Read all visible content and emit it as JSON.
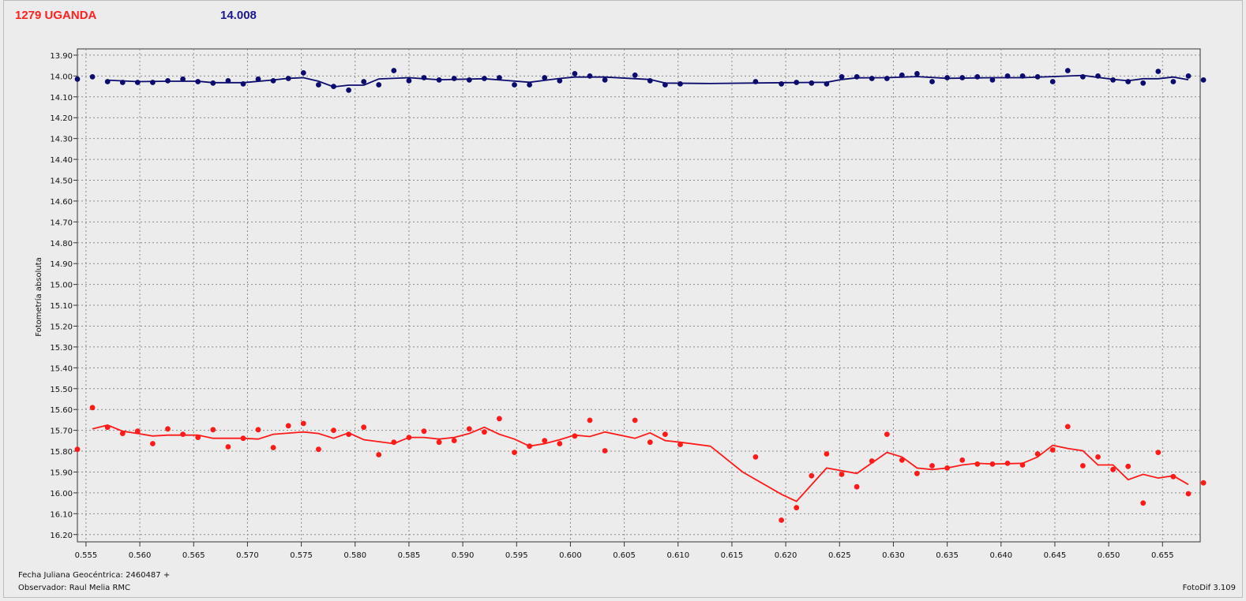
{
  "header": {
    "object_name": "1279 UGANDA",
    "mean_magnitude": "14.008"
  },
  "footer": {
    "julian_date": "Fecha Juliana Geocéntrica: 2460487 +",
    "observer": "Observador: Raul Melia RMC",
    "software": "FotoDif 3.109"
  },
  "colors": {
    "comparison_star": "#0c0c6e",
    "asteroid": "#ff1a1a",
    "background": "#ececec",
    "grid": "#8a8a8a"
  },
  "chart_data": {
    "type": "scatter",
    "xlabel": "",
    "ylabel": "Fotometría absoluta",
    "xlim": [
      0.5542,
      0.6585
    ],
    "ylim": [
      13.87,
      16.235
    ],
    "y_inverted": true,
    "grid": true,
    "x_ticks": [
      0.555,
      0.56,
      0.565,
      0.57,
      0.575,
      0.58,
      0.585,
      0.59,
      0.595,
      0.6,
      0.605,
      0.61,
      0.615,
      0.62,
      0.625,
      0.63,
      0.635,
      0.64,
      0.645,
      0.65,
      0.655
    ],
    "x_tick_labels": [
      "0.555",
      "0.560",
      "0.565",
      "0.570",
      "0.575",
      "0.580",
      "0.585",
      "0.590",
      "0.595",
      "0.600",
      "0.605",
      "0.610",
      "0.615",
      "0.620",
      "0.625",
      "0.630",
      "0.635",
      "0.640",
      "0.645",
      "0.650",
      "0.655"
    ],
    "y_ticks": [
      13.9,
      14.0,
      14.1,
      14.2,
      14.3,
      14.4,
      14.5,
      14.6,
      14.7,
      14.8,
      14.9,
      15.0,
      15.1,
      15.2,
      15.3,
      15.4,
      15.5,
      15.6,
      15.7,
      15.8,
      15.9,
      16.0,
      16.1,
      16.2
    ],
    "y_tick_labels": [
      "13.90",
      "14.00",
      "14.10",
      "14.20",
      "14.30",
      "14.40",
      "14.50",
      "14.60",
      "14.70",
      "14.80",
      "14.90",
      "15.00",
      "15.10",
      "15.20",
      "15.30",
      "15.40",
      "15.50",
      "15.60",
      "15.70",
      "15.80",
      "15.90",
      "16.00",
      "16.10",
      "16.20"
    ],
    "series": [
      {
        "key": "comparison_star",
        "points": [
          [
            0.5542,
            14.015
          ],
          [
            0.5556,
            14.004
          ],
          [
            0.557,
            14.027
          ],
          [
            0.5584,
            14.031
          ],
          [
            0.5598,
            14.031
          ],
          [
            0.5612,
            14.031
          ],
          [
            0.5626,
            14.023
          ],
          [
            0.564,
            14.015
          ],
          [
            0.5654,
            14.027
          ],
          [
            0.5668,
            14.034
          ],
          [
            0.5682,
            14.023
          ],
          [
            0.5696,
            14.038
          ],
          [
            0.571,
            14.015
          ],
          [
            0.5724,
            14.023
          ],
          [
            0.5738,
            14.012
          ],
          [
            0.5752,
            13.985
          ],
          [
            0.5766,
            14.042
          ],
          [
            0.578,
            14.05
          ],
          [
            0.5794,
            14.068
          ],
          [
            0.5808,
            14.027
          ],
          [
            0.5822,
            14.042
          ],
          [
            0.5836,
            13.974
          ],
          [
            0.585,
            14.023
          ],
          [
            0.5864,
            14.008
          ],
          [
            0.5878,
            14.019
          ],
          [
            0.5892,
            14.012
          ],
          [
            0.5906,
            14.019
          ],
          [
            0.592,
            14.012
          ],
          [
            0.5934,
            14.008
          ],
          [
            0.5948,
            14.042
          ],
          [
            0.5962,
            14.042
          ],
          [
            0.5976,
            14.008
          ],
          [
            0.599,
            14.023
          ],
          [
            0.6004,
            13.989
          ],
          [
            0.6018,
            14.0
          ],
          [
            0.6032,
            14.019
          ],
          [
            0.606,
            13.996
          ],
          [
            0.6074,
            14.023
          ],
          [
            0.6088,
            14.042
          ],
          [
            0.6102,
            14.038
          ],
          [
            0.6172,
            14.027
          ],
          [
            0.6196,
            14.038
          ],
          [
            0.621,
            14.031
          ],
          [
            0.6224,
            14.034
          ],
          [
            0.6238,
            14.038
          ],
          [
            0.6252,
            14.004
          ],
          [
            0.6266,
            14.004
          ],
          [
            0.628,
            14.012
          ],
          [
            0.6294,
            14.012
          ],
          [
            0.6308,
            13.996
          ],
          [
            0.6322,
            13.989
          ],
          [
            0.6336,
            14.027
          ],
          [
            0.635,
            14.008
          ],
          [
            0.6364,
            14.008
          ],
          [
            0.6378,
            14.004
          ],
          [
            0.6392,
            14.019
          ],
          [
            0.6406,
            14.0
          ],
          [
            0.642,
            14.0
          ],
          [
            0.6434,
            14.004
          ],
          [
            0.6448,
            14.027
          ],
          [
            0.6462,
            13.974
          ],
          [
            0.6476,
            14.004
          ],
          [
            0.649,
            14.0
          ],
          [
            0.6504,
            14.019
          ],
          [
            0.6518,
            14.027
          ],
          [
            0.6532,
            14.034
          ],
          [
            0.6546,
            13.978
          ],
          [
            0.656,
            14.027
          ],
          [
            0.6574,
            14.0
          ],
          [
            0.6588,
            14.019
          ]
        ],
        "smoothed": [
          [
            0.557,
            14.02
          ],
          [
            0.5598,
            14.027
          ],
          [
            0.5626,
            14.025
          ],
          [
            0.5654,
            14.025
          ],
          [
            0.5668,
            14.032
          ],
          [
            0.5696,
            14.032
          ],
          [
            0.5724,
            14.019
          ],
          [
            0.5738,
            14.011
          ],
          [
            0.5752,
            14.008
          ],
          [
            0.5766,
            14.025
          ],
          [
            0.578,
            14.052
          ],
          [
            0.5794,
            14.044
          ],
          [
            0.5808,
            14.044
          ],
          [
            0.5822,
            14.014
          ],
          [
            0.585,
            14.008
          ],
          [
            0.5864,
            14.013
          ],
          [
            0.5878,
            14.018
          ],
          [
            0.592,
            14.013
          ],
          [
            0.5962,
            14.03
          ],
          [
            0.5976,
            14.021
          ],
          [
            0.599,
            14.012
          ],
          [
            0.6004,
            14.005
          ],
          [
            0.6032,
            14.005
          ],
          [
            0.6074,
            14.017
          ],
          [
            0.6088,
            14.034
          ],
          [
            0.613,
            14.036
          ],
          [
            0.62,
            14.032
          ],
          [
            0.6238,
            14.03
          ],
          [
            0.6252,
            14.017
          ],
          [
            0.6266,
            14.009
          ],
          [
            0.6294,
            14.008
          ],
          [
            0.6322,
            14.003
          ],
          [
            0.635,
            14.011
          ],
          [
            0.6392,
            14.008
          ],
          [
            0.642,
            14.008
          ],
          [
            0.6448,
            14.003
          ],
          [
            0.6476,
            13.997
          ],
          [
            0.6504,
            14.016
          ],
          [
            0.6518,
            14.023
          ],
          [
            0.6532,
            14.013
          ],
          [
            0.6546,
            14.013
          ],
          [
            0.656,
            14.005
          ],
          [
            0.6574,
            14.018
          ]
        ]
      },
      {
        "key": "asteroid",
        "points": [
          [
            0.5542,
            15.791
          ],
          [
            0.5556,
            15.591
          ],
          [
            0.557,
            15.685
          ],
          [
            0.5584,
            15.715
          ],
          [
            0.5598,
            15.704
          ],
          [
            0.5612,
            15.764
          ],
          [
            0.5626,
            15.693
          ],
          [
            0.564,
            15.719
          ],
          [
            0.5654,
            15.734
          ],
          [
            0.5668,
            15.697
          ],
          [
            0.5682,
            15.779
          ],
          [
            0.5696,
            15.738
          ],
          [
            0.571,
            15.697
          ],
          [
            0.5724,
            15.783
          ],
          [
            0.5738,
            15.678
          ],
          [
            0.5752,
            15.667
          ],
          [
            0.5766,
            15.791
          ],
          [
            0.578,
            15.7
          ],
          [
            0.5794,
            15.719
          ],
          [
            0.5808,
            15.685
          ],
          [
            0.5822,
            15.817
          ],
          [
            0.5836,
            15.757
          ],
          [
            0.585,
            15.734
          ],
          [
            0.5864,
            15.704
          ],
          [
            0.5878,
            15.757
          ],
          [
            0.5892,
            15.749
          ],
          [
            0.5906,
            15.693
          ],
          [
            0.592,
            15.708
          ],
          [
            0.5934,
            15.644
          ],
          [
            0.5948,
            15.806
          ],
          [
            0.5962,
            15.776
          ],
          [
            0.5976,
            15.749
          ],
          [
            0.599,
            15.764
          ],
          [
            0.6004,
            15.727
          ],
          [
            0.6018,
            15.652
          ],
          [
            0.6032,
            15.798
          ],
          [
            0.606,
            15.652
          ],
          [
            0.6074,
            15.757
          ],
          [
            0.6088,
            15.719
          ],
          [
            0.6102,
            15.768
          ],
          [
            0.6172,
            15.828
          ],
          [
            0.6196,
            16.131
          ],
          [
            0.621,
            16.071
          ],
          [
            0.6224,
            15.918
          ],
          [
            0.6238,
            15.813
          ],
          [
            0.6252,
            15.911
          ],
          [
            0.6266,
            15.971
          ],
          [
            0.628,
            15.847
          ],
          [
            0.6294,
            15.719
          ],
          [
            0.6308,
            15.843
          ],
          [
            0.6322,
            15.907
          ],
          [
            0.6336,
            15.87
          ],
          [
            0.635,
            15.881
          ],
          [
            0.6364,
            15.843
          ],
          [
            0.6378,
            15.862
          ],
          [
            0.6392,
            15.862
          ],
          [
            0.6406,
            15.858
          ],
          [
            0.642,
            15.866
          ],
          [
            0.6434,
            15.813
          ],
          [
            0.6448,
            15.794
          ],
          [
            0.6462,
            15.682
          ],
          [
            0.6476,
            15.87
          ],
          [
            0.649,
            15.828
          ],
          [
            0.6504,
            15.888
          ],
          [
            0.6518,
            15.873
          ],
          [
            0.6532,
            16.049
          ],
          [
            0.6546,
            15.806
          ],
          [
            0.656,
            15.922
          ],
          [
            0.6574,
            16.004
          ],
          [
            0.6588,
            15.952
          ]
        ],
        "smoothed": [
          [
            0.5556,
            15.693
          ],
          [
            0.557,
            15.675
          ],
          [
            0.5584,
            15.704
          ],
          [
            0.5598,
            15.715
          ],
          [
            0.5612,
            15.727
          ],
          [
            0.5626,
            15.723
          ],
          [
            0.5654,
            15.723
          ],
          [
            0.5668,
            15.738
          ],
          [
            0.5696,
            15.738
          ],
          [
            0.571,
            15.742
          ],
          [
            0.5724,
            15.719
          ],
          [
            0.5752,
            15.708
          ],
          [
            0.5766,
            15.715
          ],
          [
            0.578,
            15.738
          ],
          [
            0.5794,
            15.712
          ],
          [
            0.5808,
            15.745
          ],
          [
            0.5836,
            15.764
          ],
          [
            0.585,
            15.734
          ],
          [
            0.5864,
            15.734
          ],
          [
            0.5878,
            15.742
          ],
          [
            0.5892,
            15.734
          ],
          [
            0.5906,
            15.715
          ],
          [
            0.592,
            15.685
          ],
          [
            0.5934,
            15.719
          ],
          [
            0.5948,
            15.742
          ],
          [
            0.5962,
            15.776
          ],
          [
            0.5976,
            15.764
          ],
          [
            0.599,
            15.745
          ],
          [
            0.6004,
            15.723
          ],
          [
            0.6018,
            15.73
          ],
          [
            0.6032,
            15.708
          ],
          [
            0.606,
            15.738
          ],
          [
            0.6074,
            15.712
          ],
          [
            0.6088,
            15.749
          ],
          [
            0.6102,
            15.757
          ],
          [
            0.613,
            15.776
          ],
          [
            0.616,
            15.9
          ],
          [
            0.6196,
            16.007
          ],
          [
            0.621,
            16.041
          ],
          [
            0.6238,
            15.881
          ],
          [
            0.6266,
            15.907
          ],
          [
            0.6294,
            15.806
          ],
          [
            0.6308,
            15.828
          ],
          [
            0.6322,
            15.881
          ],
          [
            0.6336,
            15.888
          ],
          [
            0.635,
            15.881
          ],
          [
            0.6364,
            15.866
          ],
          [
            0.6378,
            15.858
          ],
          [
            0.6392,
            15.862
          ],
          [
            0.642,
            15.858
          ],
          [
            0.6434,
            15.828
          ],
          [
            0.6448,
            15.772
          ],
          [
            0.6462,
            15.787
          ],
          [
            0.6476,
            15.798
          ],
          [
            0.649,
            15.866
          ],
          [
            0.6504,
            15.866
          ],
          [
            0.6518,
            15.937
          ],
          [
            0.6532,
            15.911
          ],
          [
            0.6546,
            15.929
          ],
          [
            0.656,
            15.918
          ],
          [
            0.6574,
            15.96
          ]
        ]
      }
    ]
  }
}
